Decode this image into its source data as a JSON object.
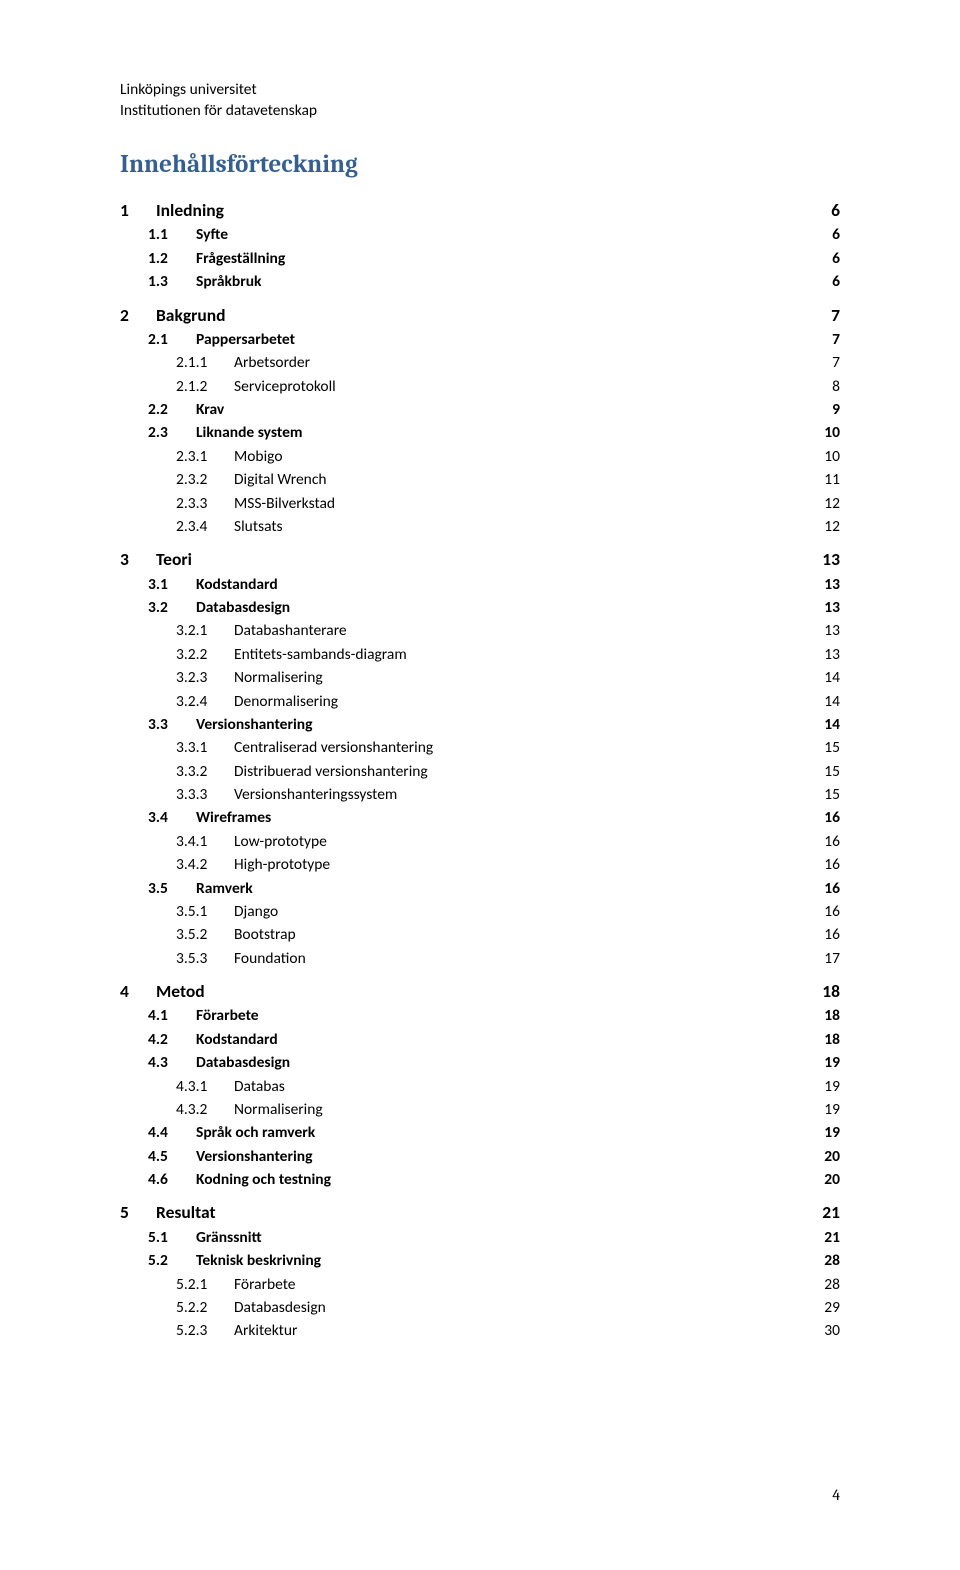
{
  "header": {
    "line1": "Linköpings universitet",
    "line2": "Institutionen för datavetenskap"
  },
  "toc_title": "Innehållsförteckning",
  "page_number": "4",
  "colors": {
    "title_color": "#365f91",
    "text_color": "#000000",
    "background": "#ffffff"
  },
  "typography": {
    "body_font": "Calibri",
    "heading_font": "Cambria",
    "body_size_pt": 11,
    "heading_size_pt": 18
  },
  "toc": [
    {
      "level": 1,
      "num": "1",
      "title": "Inledning",
      "page": "6"
    },
    {
      "level": 2,
      "num": "1.1",
      "title": "Syfte",
      "page": "6"
    },
    {
      "level": 2,
      "num": "1.2",
      "title": "Frågeställning",
      "page": "6"
    },
    {
      "level": 2,
      "num": "1.3",
      "title": "Språkbruk",
      "page": "6"
    },
    {
      "level": 1,
      "num": "2",
      "title": "Bakgrund",
      "page": "7"
    },
    {
      "level": 2,
      "num": "2.1",
      "title": "Pappersarbetet",
      "page": "7"
    },
    {
      "level": 3,
      "num": "2.1.1",
      "title": "Arbetsorder",
      "page": "7"
    },
    {
      "level": 3,
      "num": "2.1.2",
      "title": "Serviceprotokoll",
      "page": "8"
    },
    {
      "level": 2,
      "num": "2.2",
      "title": "Krav",
      "page": "9"
    },
    {
      "level": 2,
      "num": "2.3",
      "title": "Liknande system",
      "page": "10"
    },
    {
      "level": 3,
      "num": "2.3.1",
      "title": "Mobigo",
      "page": "10"
    },
    {
      "level": 3,
      "num": "2.3.2",
      "title": "Digital Wrench",
      "page": "11"
    },
    {
      "level": 3,
      "num": "2.3.3",
      "title": "MSS-Bilverkstad",
      "page": "12"
    },
    {
      "level": 3,
      "num": "2.3.4",
      "title": "Slutsats",
      "page": "12"
    },
    {
      "level": 1,
      "num": "3",
      "title": "Teori",
      "page": "13"
    },
    {
      "level": 2,
      "num": "3.1",
      "title": "Kodstandard",
      "page": "13"
    },
    {
      "level": 2,
      "num": "3.2",
      "title": "Databasdesign",
      "page": "13"
    },
    {
      "level": 3,
      "num": "3.2.1",
      "title": "Databashanterare",
      "page": "13"
    },
    {
      "level": 3,
      "num": "3.2.2",
      "title": "Entitets-sambands-diagram",
      "page": "13"
    },
    {
      "level": 3,
      "num": "3.2.3",
      "title": "Normalisering",
      "page": "14"
    },
    {
      "level": 3,
      "num": "3.2.4",
      "title": "Denormalisering",
      "page": "14"
    },
    {
      "level": 2,
      "num": "3.3",
      "title": "Versionshantering",
      "page": "14"
    },
    {
      "level": 3,
      "num": "3.3.1",
      "title": "Centraliserad versionshantering",
      "page": "15"
    },
    {
      "level": 3,
      "num": "3.3.2",
      "title": "Distribuerad versionshantering",
      "page": "15"
    },
    {
      "level": 3,
      "num": "3.3.3",
      "title": "Versionshanteringssystem",
      "page": "15"
    },
    {
      "level": 2,
      "num": "3.4",
      "title": "Wireframes",
      "page": "16"
    },
    {
      "level": 3,
      "num": "3.4.1",
      "title": "Low-prototype",
      "page": "16"
    },
    {
      "level": 3,
      "num": "3.4.2",
      "title": "High-prototype",
      "page": "16"
    },
    {
      "level": 2,
      "num": "3.5",
      "title": "Ramverk",
      "page": "16"
    },
    {
      "level": 3,
      "num": "3.5.1",
      "title": "Django",
      "page": "16"
    },
    {
      "level": 3,
      "num": "3.5.2",
      "title": "Bootstrap",
      "page": "16"
    },
    {
      "level": 3,
      "num": "3.5.3",
      "title": "Foundation",
      "page": "17"
    },
    {
      "level": 1,
      "num": "4",
      "title": "Metod",
      "page": "18"
    },
    {
      "level": 2,
      "num": "4.1",
      "title": "Förarbete",
      "page": "18"
    },
    {
      "level": 2,
      "num": "4.2",
      "title": "Kodstandard",
      "page": "18"
    },
    {
      "level": 2,
      "num": "4.3",
      "title": "Databasdesign",
      "page": "19"
    },
    {
      "level": 3,
      "num": "4.3.1",
      "title": "Databas",
      "page": "19"
    },
    {
      "level": 3,
      "num": "4.3.2",
      "title": "Normalisering",
      "page": "19"
    },
    {
      "level": 2,
      "num": "4.4",
      "title": "Språk och ramverk",
      "page": "19"
    },
    {
      "level": 2,
      "num": "4.5",
      "title": "Versionshantering",
      "page": "20"
    },
    {
      "level": 2,
      "num": "4.6",
      "title": "Kodning och testning",
      "page": "20"
    },
    {
      "level": 1,
      "num": "5",
      "title": "Resultat",
      "page": "21"
    },
    {
      "level": 2,
      "num": "5.1",
      "title": "Gränssnitt",
      "page": "21"
    },
    {
      "level": 2,
      "num": "5.2",
      "title": "Teknisk beskrivning",
      "page": "28"
    },
    {
      "level": 3,
      "num": "5.2.1",
      "title": "Förarbete",
      "page": "28"
    },
    {
      "level": 3,
      "num": "5.2.2",
      "title": "Databasdesign",
      "page": "29"
    },
    {
      "level": 3,
      "num": "5.2.3",
      "title": "Arkitektur",
      "page": "30"
    }
  ]
}
